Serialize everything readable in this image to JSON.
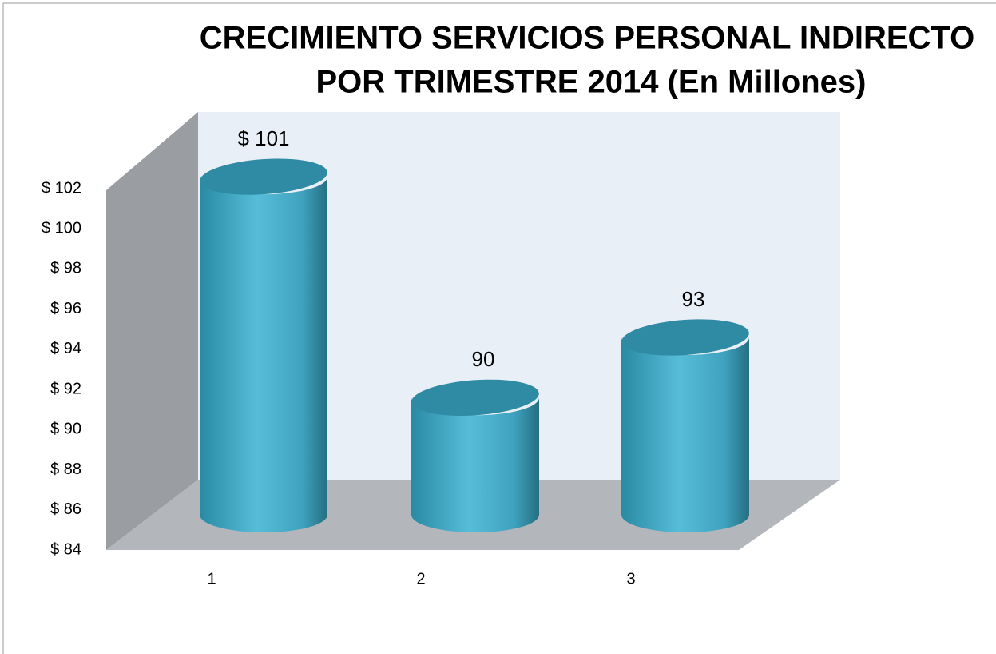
{
  "chart_data": {
    "type": "cylinder",
    "title": [
      "CRECIMIENTO SERVICIOS PERSONAL INDIRECTO",
      "POR TRIMESTRE 2014 (En Millones)"
    ],
    "categories": [
      "1",
      "2",
      "3"
    ],
    "values": [
      101,
      90,
      93
    ],
    "value_labels": [
      "$ 101",
      "90",
      "93"
    ],
    "color": "#4bb3cf",
    "ylim": [
      84,
      102
    ],
    "yticks": [
      {
        "value": 84,
        "label": "$ 84"
      },
      {
        "value": 86,
        "label": "$ 86"
      },
      {
        "value": 88,
        "label": "$ 88"
      },
      {
        "value": 90,
        "label": "$ 90"
      },
      {
        "value": 92,
        "label": "$ 92"
      },
      {
        "value": 94,
        "label": "$ 94"
      },
      {
        "value": 96,
        "label": "$ 96"
      },
      {
        "value": 98,
        "label": "$ 98"
      },
      {
        "value": 100,
        "label": "$ 100"
      },
      {
        "value": 102,
        "label": "$ 102"
      }
    ],
    "grid": false
  }
}
